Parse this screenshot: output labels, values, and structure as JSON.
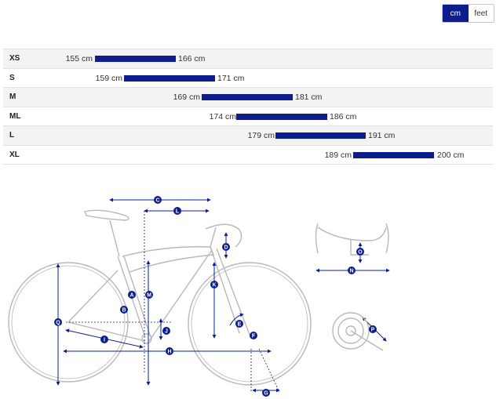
{
  "units": {
    "options": [
      "cm",
      "feet"
    ],
    "selected": "cm"
  },
  "sizes": [
    {
      "label": "XS",
      "min": "155 cm",
      "max": "166 cm"
    },
    {
      "label": "S",
      "min": "159 cm",
      "max": "171 cm"
    },
    {
      "label": "M",
      "min": "169 cm",
      "max": "181 cm"
    },
    {
      "label": "ML",
      "min": "174 cm",
      "max": "186 cm"
    },
    {
      "label": "L",
      "min": "179 cm",
      "max": "191 cm"
    },
    {
      "label": "XL",
      "min": "189 cm",
      "max": "200 cm"
    }
  ],
  "geometry_markers": [
    "A",
    "B",
    "C",
    "D",
    "E",
    "F",
    "G",
    "H",
    "I",
    "J",
    "K",
    "L",
    "M",
    "N",
    "O",
    "P",
    "Q"
  ],
  "colors": {
    "accent": "#0d1d8c",
    "frame_line": "#b8b8b8",
    "row_alt": "#f3f3f3"
  }
}
